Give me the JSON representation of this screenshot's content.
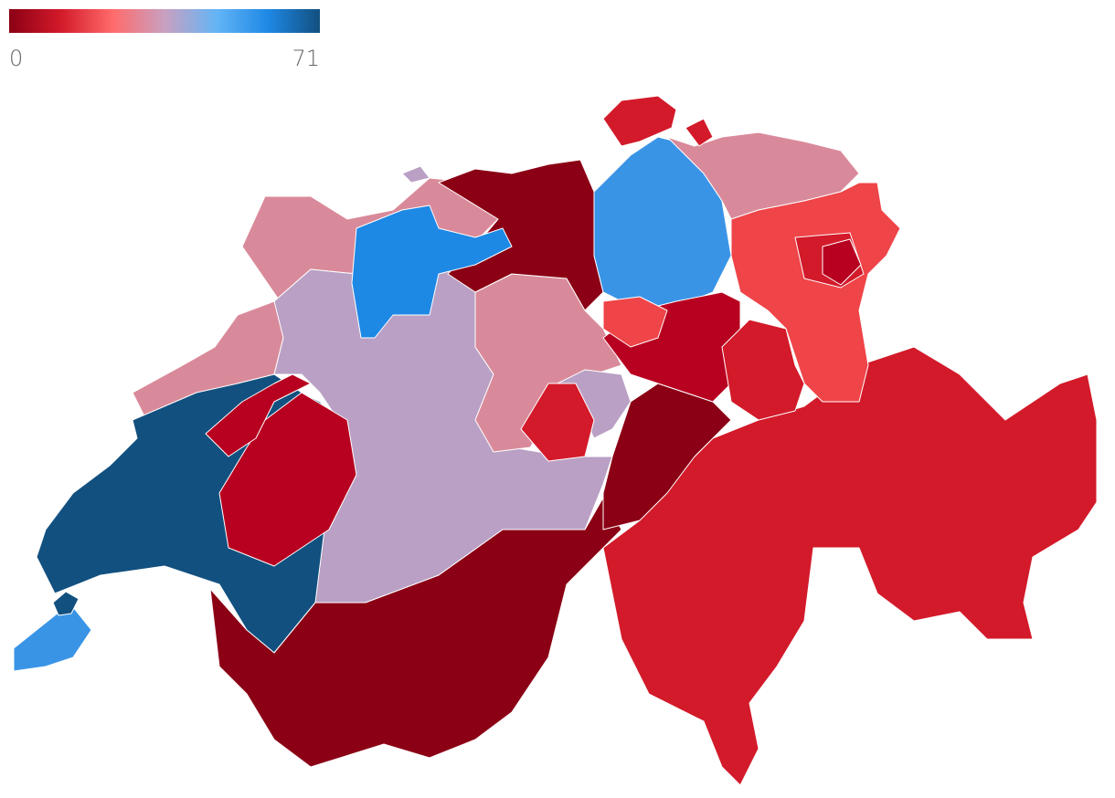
{
  "legend": {
    "min": 0,
    "max": 71,
    "colors": [
      "#8b0015",
      "#d31a2a",
      "#ff6b6b",
      "#c9a0c0",
      "#64b5f6",
      "#1e88e5",
      "#12507f"
    ]
  }
}
